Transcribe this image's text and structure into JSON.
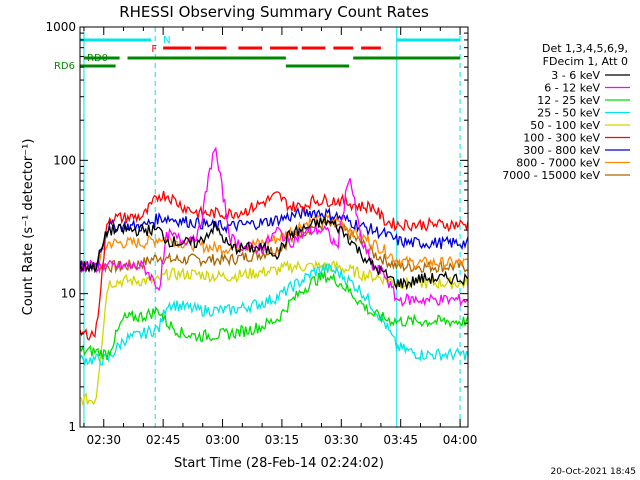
{
  "chart_data": {
    "type": "line",
    "title": "RHESSI Observing Summary Count Rates",
    "xlabel": "Start Time (28-Feb-14 02:24:02)",
    "ylabel": "Count Rate (s⁻¹ detector⁻¹)",
    "yscale": "log",
    "ylim": [
      1,
      1000
    ],
    "xlim": [
      "02:24",
      "04:02"
    ],
    "x_ticks": [
      "02:30",
      "02:45",
      "03:00",
      "03:15",
      "03:30",
      "03:45",
      "04:00"
    ],
    "y_ticks": [
      "1",
      "10",
      "100",
      "1000"
    ],
    "legend_header": [
      "Det 1,3,4,5,6,9,",
      "FDecim 1, Att 0"
    ],
    "legend_position": "right",
    "grid": false,
    "x": [
      "02:24",
      "02:28",
      "02:31",
      "02:35",
      "02:40",
      "02:44",
      "02:46",
      "02:50",
      "02:54",
      "02:58",
      "03:02",
      "03:06",
      "03:10",
      "03:14",
      "03:17",
      "03:20",
      "03:23",
      "03:26",
      "03:29",
      "03:32",
      "03:35",
      "03:38",
      "03:41",
      "03:44",
      "03:47",
      "03:50",
      "03:54",
      "03:58",
      "04:00"
    ],
    "series": [
      {
        "name": "3 - 6 keV",
        "color": "#000000",
        "values": [
          16,
          16,
          30,
          30,
          30,
          30,
          25,
          24,
          24,
          32,
          22,
          22,
          22,
          20,
          28,
          30,
          33,
          35,
          32,
          26,
          20,
          16,
          14,
          12,
          12,
          13,
          13,
          13,
          13
        ]
      },
      {
        "name": "6 - 12 keV",
        "color": "#ff00ff",
        "values": [
          16,
          16,
          16,
          16,
          16,
          11,
          28,
          25,
          28,
          130,
          26,
          22,
          22,
          30,
          24,
          28,
          30,
          30,
          22,
          80,
          25,
          16,
          14,
          9,
          9,
          9,
          9,
          9,
          9
        ]
      },
      {
        "name": "12 - 25 keV",
        "color": "#00dd00",
        "values": [
          3.7,
          3.7,
          3.5,
          6.5,
          6.8,
          7.5,
          6,
          5,
          4.8,
          4.9,
          5,
          5.3,
          5.7,
          6.5,
          8.5,
          10.5,
          12.5,
          13.5,
          12.5,
          10.5,
          8.5,
          7,
          6.5,
          6.2,
          6.2,
          6.2,
          6.2,
          6.2,
          6.2
        ]
      },
      {
        "name": "25 - 50 keV",
        "color": "#00e5e5",
        "values": [
          3.2,
          3.2,
          3.2,
          4.5,
          5,
          5.5,
          8.5,
          8,
          7.5,
          7.5,
          7.5,
          8,
          8.5,
          9.5,
          11,
          12.5,
          14.5,
          15.5,
          14.5,
          12.5,
          10.5,
          8,
          6,
          4,
          3.7,
          3.5,
          3.5,
          3.5,
          3.5
        ]
      },
      {
        "name": "50 - 100 keV",
        "color": "#d4d400",
        "values": [
          1.6,
          1.6,
          12,
          12.5,
          12.5,
          12.5,
          14,
          14,
          14,
          13.5,
          13.5,
          14,
          14.5,
          15,
          16,
          16,
          16,
          16,
          16,
          15,
          14,
          13.5,
          13,
          12,
          12,
          12,
          12,
          12,
          12
        ]
      },
      {
        "name": "100 - 300 keV",
        "color": "#ff0000",
        "values": [
          5,
          5,
          37,
          37,
          38,
          55,
          55,
          45,
          40,
          40,
          40,
          42,
          48,
          55,
          45,
          45,
          50,
          50,
          50,
          48,
          45,
          45,
          35,
          33,
          33,
          33,
          33,
          33,
          33
        ]
      },
      {
        "name": "300 - 800 keV",
        "color": "#0000dd",
        "values": [
          16,
          16,
          32,
          32,
          32,
          37,
          37,
          35,
          34,
          32,
          32,
          33,
          34,
          36,
          38,
          40,
          41,
          40,
          38,
          35,
          32,
          30,
          28,
          25,
          24,
          24,
          24,
          24,
          24
        ]
      },
      {
        "name": "800 - 7000 keV",
        "color": "#ff8800",
        "values": [
          16,
          16,
          24,
          24,
          24,
          26,
          26,
          24,
          23,
          22,
          22,
          23,
          24,
          26,
          29,
          33,
          35,
          36,
          35,
          31,
          27,
          24,
          21,
          18,
          17,
          17,
          17,
          17,
          17
        ]
      },
      {
        "name": "7000 - 15000 keV",
        "color": "#aa6600",
        "values": [
          16,
          16,
          16,
          16,
          17,
          19,
          18,
          18,
          18,
          18,
          18,
          19,
          20,
          22,
          25,
          29,
          32,
          33,
          32,
          28,
          24,
          20,
          18,
          16,
          16,
          16,
          16,
          16,
          16
        ]
      }
    ],
    "status_bars": [
      {
        "label": "N",
        "color": "#00e5e5",
        "segments": [
          [
            "02:24",
            "02:42"
          ],
          [
            "03:44",
            "04:00"
          ]
        ]
      },
      {
        "label": "F",
        "color": "#ff0000",
        "segments": [
          [
            "02:45",
            "02:52"
          ],
          [
            "02:53",
            "03:01"
          ],
          [
            "03:04",
            "03:10"
          ],
          [
            "03:12",
            "03:19"
          ],
          [
            "03:20",
            "03:26"
          ],
          [
            "03:28",
            "03:33"
          ],
          [
            "03:35",
            "03:40"
          ]
        ]
      },
      {
        "label": "RD0",
        "color": "#008800",
        "segments": [
          [
            "02:25",
            "02:34"
          ],
          [
            "02:36",
            "03:16"
          ],
          [
            "03:33",
            "04:00"
          ]
        ]
      },
      {
        "label": "RD6",
        "color": "#008800",
        "segments": [
          [
            "02:24",
            "02:33"
          ],
          [
            "03:16",
            "03:32"
          ]
        ]
      }
    ],
    "vertical_markers": [
      {
        "time": "02:25",
        "color": "#00e5e5",
        "style": "solid"
      },
      {
        "time": "02:43",
        "color": "#00e5e5",
        "style": "dashed"
      },
      {
        "time": "03:44",
        "color": "#00e5e5",
        "style": "solid"
      },
      {
        "time": "04:00",
        "color": "#00e5e5",
        "style": "dashed"
      }
    ]
  },
  "footer": "20-Oct-2021 18:45"
}
